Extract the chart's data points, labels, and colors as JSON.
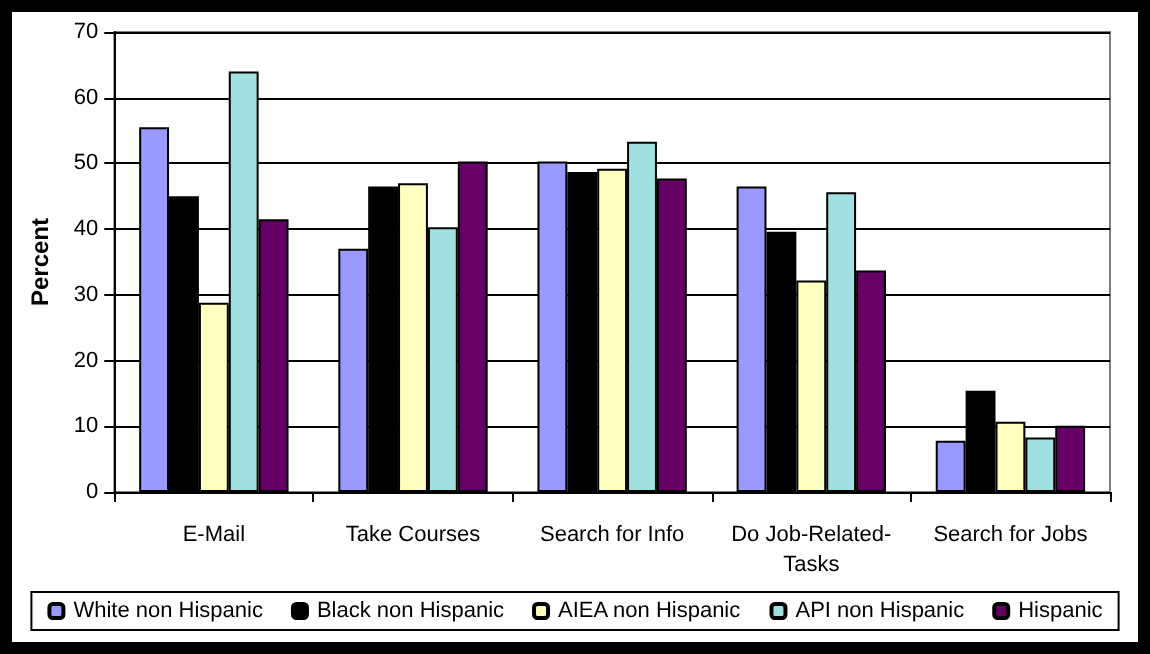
{
  "chart_data": {
    "type": "bar",
    "ylabel": "Percent",
    "categories": [
      "E-Mail",
      "Take Courses",
      "Search for Info",
      "Do Job-Related-\nTasks",
      "Search for Jobs"
    ],
    "series": [
      {
        "name": "White non Hispanic",
        "color": "#9999ff",
        "values": [
          55.5,
          37,
          50.3,
          46.5,
          7.8
        ]
      },
      {
        "name": "Black non Hispanic",
        "color": "#000000",
        "values": [
          45,
          46.5,
          48.7,
          39.6,
          15.4
        ]
      },
      {
        "name": "AIEA non Hispanic",
        "color": "#ffffc0",
        "values": [
          28.8,
          47,
          49.2,
          32.2,
          10.7
        ]
      },
      {
        "name": "API non Hispanic",
        "color": "#a0e0e0",
        "values": [
          64,
          40.3,
          53.3,
          45.6,
          8.3
        ]
      },
      {
        "name": "Hispanic",
        "color": "#660066",
        "values": [
          41.5,
          50.3,
          47.7,
          33.7,
          10.1
        ]
      }
    ],
    "ylim": [
      0,
      70
    ],
    "yticks": [
      0,
      10,
      20,
      30,
      40,
      50,
      60,
      70
    ],
    "grid": "y",
    "legend": "bottom"
  }
}
